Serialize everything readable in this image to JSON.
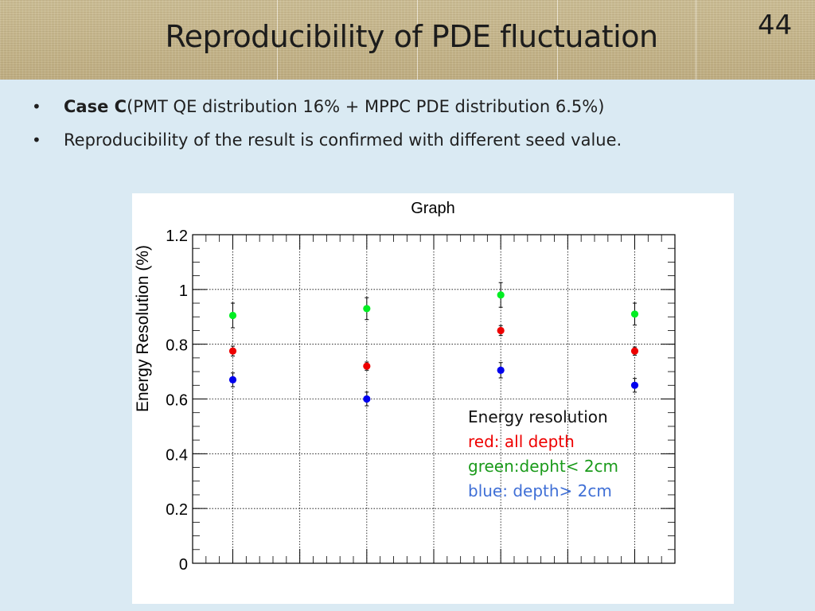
{
  "header": {
    "title": "Reproducibility of PDE fluctuation",
    "slide_number": "44"
  },
  "bullets": [
    {
      "bold": "Case C",
      "text": "(PMT QE distribution 16% + MPPC PDE distribution 6.5%)"
    },
    {
      "bold": "",
      "text": "Reproducibility of the result is confirmed with different seed value."
    }
  ],
  "bullet_symbol": "•",
  "chart_data": {
    "type": "scatter",
    "title": "Graph",
    "xlabel": "",
    "ylabel": "Energy Resolution (%)",
    "ylim": [
      0,
      1.2
    ],
    "yticks": [
      "0",
      "0.2",
      "0.4",
      "0.6",
      "0.8",
      "1",
      "1.2"
    ],
    "grid": true,
    "x": [
      1,
      2,
      3,
      4
    ],
    "xlim": [
      0.7,
      4.3
    ],
    "series": [
      {
        "color": "#00ee22",
        "values": [
          0.905,
          0.93,
          0.98,
          0.91
        ],
        "errors": [
          0.045,
          0.04,
          0.045,
          0.04
        ]
      },
      {
        "color": "#ee0000",
        "values": [
          0.775,
          0.72,
          0.85,
          0.775
        ],
        "errors": [
          0.018,
          0.015,
          0.018,
          0.015
        ]
      },
      {
        "color": "#0000ee",
        "values": [
          0.67,
          0.6,
          0.705,
          0.65
        ],
        "errors": [
          0.025,
          0.025,
          0.028,
          0.025
        ]
      }
    ],
    "annotation": {
      "heading": "Energy resolution",
      "lines": [
        {
          "text": "red: all depth",
          "color": "#ee0000"
        },
        {
          "text": "green:depht< 2cm",
          "color": "#1a9a1a"
        },
        {
          "text": "blue: depth> 2cm",
          "color": "#3f6fd6"
        }
      ]
    }
  },
  "colors": {
    "background": "#daeaf3",
    "header": "#c6b78e",
    "plot_frame": "#000000"
  }
}
